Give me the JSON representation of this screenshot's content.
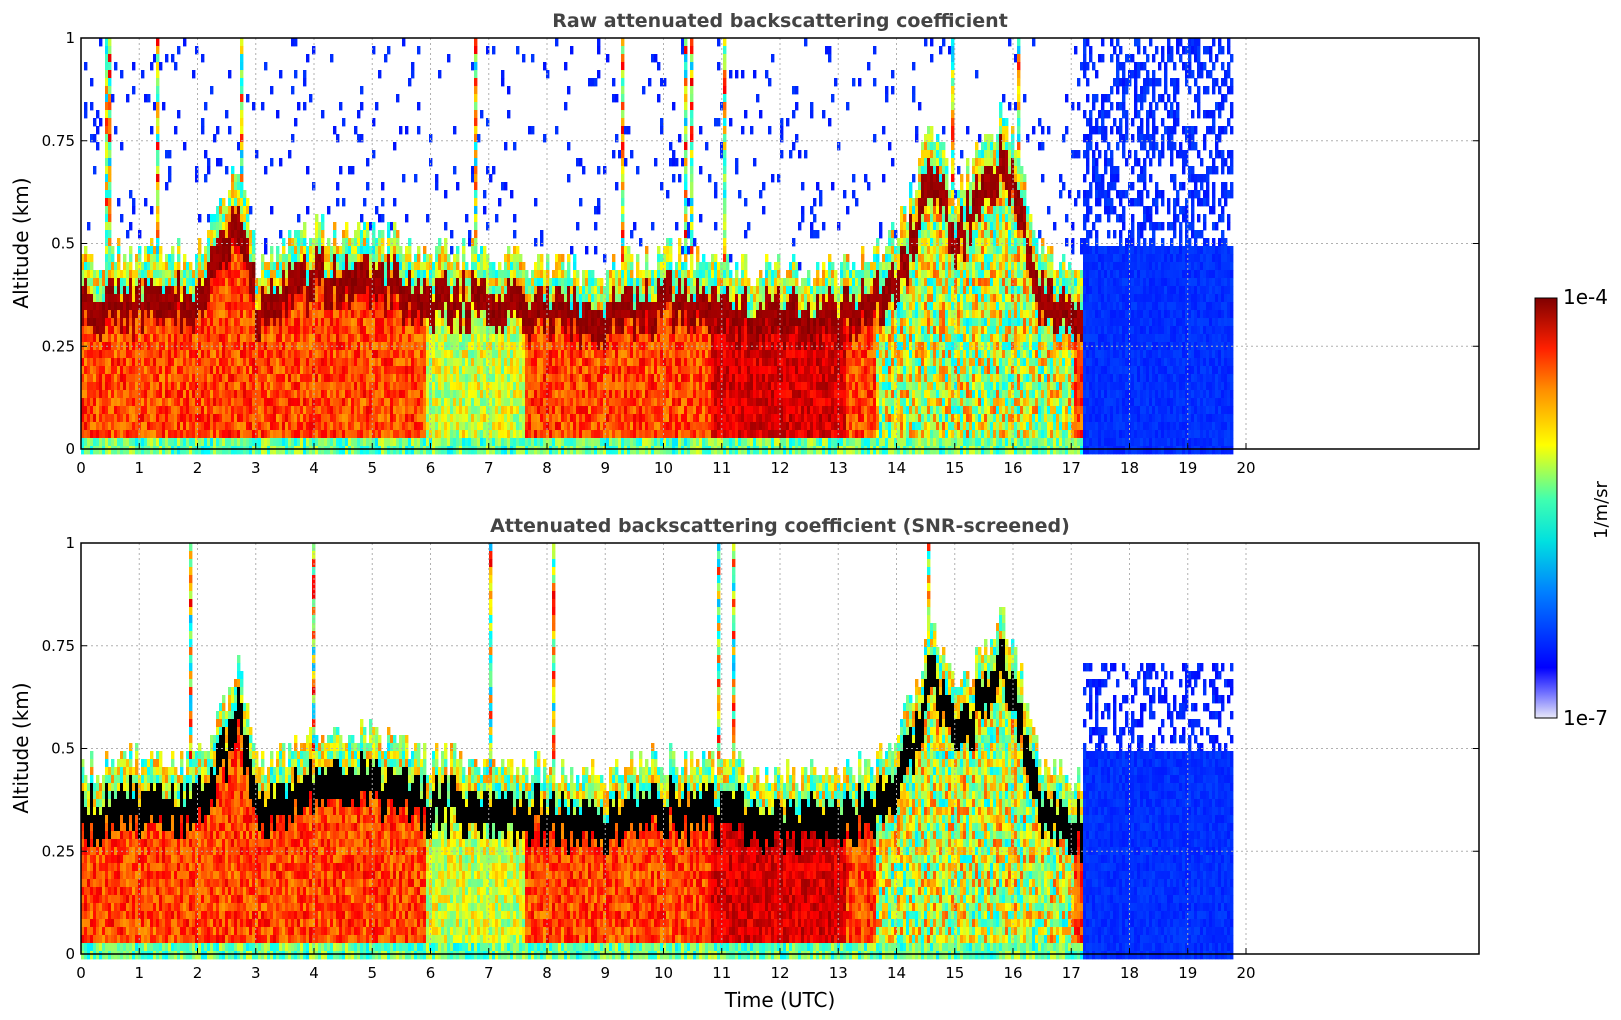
{
  "chart_data": [
    {
      "type": "heatmap",
      "title": "Raw attenuated backscattering coefficient",
      "xlabel": "",
      "ylabel": "Altitude (km)",
      "xlim": [
        0,
        24
      ],
      "ylim": [
        0,
        1
      ],
      "x_ticks": [
        "0",
        "1",
        "2",
        "3",
        "4",
        "5",
        "6",
        "7",
        "8",
        "9",
        "10",
        "11",
        "12",
        "13",
        "14",
        "15",
        "16",
        "17",
        "18",
        "19",
        "20"
      ],
      "y_ticks": [
        "0",
        "0.25",
        "0.5",
        "0.75",
        "1"
      ],
      "grid": true,
      "data_end_time_utc": 19.8,
      "layer_top_km": [
        {
          "t": 0,
          "z": 0.38
        },
        {
          "t": 1,
          "z": 0.4
        },
        {
          "t": 2,
          "z": 0.4
        },
        {
          "t": 2.7,
          "z": 0.62
        },
        {
          "t": 3,
          "z": 0.38
        },
        {
          "t": 4,
          "z": 0.46
        },
        {
          "t": 5,
          "z": 0.46
        },
        {
          "t": 6,
          "z": 0.4
        },
        {
          "t": 7,
          "z": 0.4
        },
        {
          "t": 8,
          "z": 0.38
        },
        {
          "t": 9,
          "z": 0.36
        },
        {
          "t": 10,
          "z": 0.4
        },
        {
          "t": 11,
          "z": 0.38
        },
        {
          "t": 12,
          "z": 0.36
        },
        {
          "t": 13,
          "z": 0.36
        },
        {
          "t": 14,
          "z": 0.44
        },
        {
          "t": 14.6,
          "z": 0.72
        },
        {
          "t": 15,
          "z": 0.55
        },
        {
          "t": 15.8,
          "z": 0.75
        },
        {
          "t": 16.5,
          "z": 0.4
        },
        {
          "t": 17,
          "z": 0.35
        }
      ]
    },
    {
      "type": "heatmap",
      "title": "Attenuated backscattering coefficient (SNR-screened)",
      "xlabel": "Time (UTC)",
      "ylabel": "Altitude (km)",
      "xlim": [
        0,
        24
      ],
      "ylim": [
        0,
        1
      ],
      "x_ticks": [
        "0",
        "1",
        "2",
        "3",
        "4",
        "5",
        "6",
        "7",
        "8",
        "9",
        "10",
        "11",
        "12",
        "13",
        "14",
        "15",
        "16",
        "17",
        "18",
        "19",
        "20"
      ],
      "y_ticks": [
        "0",
        "0.25",
        "0.5",
        "0.75",
        "1"
      ],
      "grid": true,
      "data_end_time_utc": 19.8
    }
  ],
  "colorbar": {
    "label": "1/m/sr",
    "min_label": "1e-7",
    "max_label": "1e-4",
    "scale": "log",
    "colormap": "jet",
    "colors": [
      "#e8e8f8",
      "#0000ff",
      "#00bfff",
      "#40ffc0",
      "#ffff00",
      "#ff8000",
      "#ff2000",
      "#800000"
    ]
  }
}
